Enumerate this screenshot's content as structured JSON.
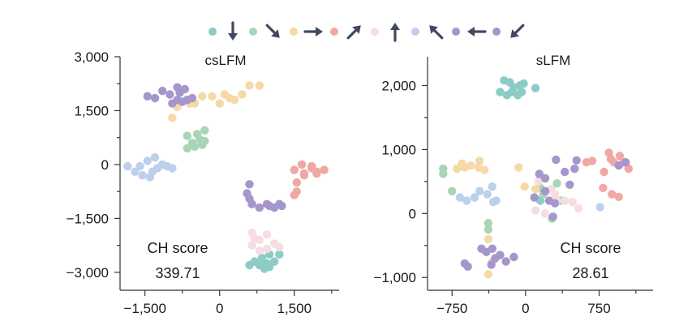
{
  "colors": {
    "teal": "#8ccbc6",
    "green": "#a8d5b4",
    "yellow": "#f5d9a8",
    "salmon": "#f0a8a4",
    "pink": "#f6dde2",
    "blue": "#bcd0ec",
    "purple": "#a596cb",
    "arrow": "#3f4a5c",
    "axis": "#333333"
  },
  "legend_sequence": [
    {
      "color": "teal",
      "arrow": "down"
    },
    {
      "color": "green",
      "arrow": "down-right"
    },
    {
      "color": "yellow",
      "arrow": "right"
    },
    {
      "color": "salmon",
      "arrow": "up-right"
    },
    {
      "color": "pink",
      "arrow": "up"
    },
    {
      "color": "blue",
      "arrow": "up-left"
    },
    {
      "color": "purple",
      "arrow": "left"
    },
    {
      "color": "purple",
      "arrow": "down-left"
    }
  ],
  "chart_data": [
    {
      "type": "scatter",
      "title": "csLFM",
      "xlabel": "",
      "ylabel": "",
      "xlim": [
        -2000,
        2400
      ],
      "ylim": [
        -3500,
        3000
      ],
      "xticks": [
        -1500,
        0,
        1500
      ],
      "xtick_labels": [
        "−1,500",
        "0",
        "1,500"
      ],
      "yticks": [
        -3000,
        -1500,
        0,
        1500,
        3000
      ],
      "ytick_labels": [
        "−3,000",
        "−1,500",
        "0",
        "1,500",
        "3,000"
      ],
      "score_label": "CH score",
      "score_value": "339.71",
      "series": [
        {
          "color": "teal",
          "points": [
            [
              600,
              -2800
            ],
            [
              700,
              -2700
            ],
            [
              800,
              -2800
            ],
            [
              900,
              -2900
            ],
            [
              1000,
              -2850
            ],
            [
              1100,
              -2700
            ],
            [
              1200,
              -2500
            ],
            [
              1000,
              -2500
            ],
            [
              850,
              -2600
            ],
            [
              950,
              -2750
            ]
          ]
        },
        {
          "color": "green",
          "points": [
            [
              -650,
              450
            ],
            [
              -550,
              600
            ],
            [
              -400,
              700
            ],
            [
              -300,
              650
            ],
            [
              -450,
              850
            ],
            [
              -300,
              950
            ],
            [
              -650,
              800
            ],
            [
              -500,
              500
            ],
            [
              -350,
              550
            ]
          ]
        },
        {
          "color": "yellow",
          "points": [
            [
              -950,
              1300
            ],
            [
              -850,
              1600
            ],
            [
              -600,
              1700
            ],
            [
              -500,
              1700
            ],
            [
              -350,
              1900
            ],
            [
              -150,
              1900
            ],
            [
              0,
              1700
            ],
            [
              100,
              1950
            ],
            [
              200,
              1850
            ],
            [
              300,
              1800
            ],
            [
              450,
              1950
            ],
            [
              600,
              2200
            ],
            [
              800,
              2200
            ]
          ]
        },
        {
          "color": "salmon",
          "points": [
            [
              1500,
              -150
            ],
            [
              1650,
              0
            ],
            [
              1700,
              -250
            ],
            [
              1850,
              -100
            ],
            [
              1950,
              -200
            ],
            [
              2100,
              -150
            ],
            [
              1850,
              -50
            ],
            [
              1950,
              -250
            ],
            [
              1550,
              -500
            ],
            [
              1550,
              -750
            ],
            [
              1500,
              -850
            ],
            [
              1700,
              -300
            ]
          ]
        },
        {
          "color": "pink",
          "points": [
            [
              650,
              -1900
            ],
            [
              800,
              -2100
            ],
            [
              950,
              -1950
            ],
            [
              1100,
              -2200
            ],
            [
              800,
              -2400
            ],
            [
              650,
              -2250
            ],
            [
              950,
              -2350
            ],
            [
              1200,
              -2300
            ],
            [
              700,
              -2050
            ]
          ]
        },
        {
          "color": "blue",
          "points": [
            [
              -1850,
              -50
            ],
            [
              -1700,
              -200
            ],
            [
              -1600,
              -50
            ],
            [
              -1550,
              -300
            ],
            [
              -1400,
              -350
            ],
            [
              -1450,
              100
            ],
            [
              -1300,
              200
            ],
            [
              -1250,
              -100
            ],
            [
              -1150,
              0
            ],
            [
              -1050,
              -50
            ],
            [
              -950,
              -100
            ],
            [
              -1350,
              -200
            ]
          ]
        },
        {
          "color": "purple",
          "points": [
            [
              -1450,
              1900
            ],
            [
              -1300,
              1850
            ],
            [
              -1150,
              2050
            ],
            [
              -1000,
              1950
            ],
            [
              -950,
              1700
            ],
            [
              -850,
              1800
            ],
            [
              -800,
              2000
            ],
            [
              -750,
              1750
            ],
            [
              -700,
              2100
            ],
            [
              -650,
              1800
            ],
            [
              -550,
              1850
            ],
            [
              -850,
              2150
            ],
            [
              600,
              -550
            ],
            [
              550,
              -800
            ],
            [
              600,
              -950
            ],
            [
              650,
              -1100
            ],
            [
              800,
              -1200
            ],
            [
              950,
              -1100
            ],
            [
              1100,
              -1200
            ],
            [
              1200,
              -1100
            ],
            [
              1250,
              -1150
            ],
            [
              1000,
              -1150
            ]
          ]
        }
      ]
    },
    {
      "type": "scatter",
      "title": "sLFM",
      "xlabel": "",
      "ylabel": "",
      "xlim": [
        -1000,
        1300
      ],
      "ylim": [
        -1200,
        2450
      ],
      "xticks": [
        -750,
        0,
        750
      ],
      "xtick_labels": [
        "−750",
        "0",
        "750"
      ],
      "yticks": [
        -1000,
        0,
        1000,
        2000
      ],
      "ytick_labels": [
        "−1,000",
        "0",
        "1,000",
        "2,000"
      ],
      "score_label": "CH score",
      "score_value": "28.61",
      "series": [
        {
          "color": "teal",
          "points": [
            [
              -260,
              1900
            ],
            [
              -190,
              1850
            ],
            [
              -140,
              1900
            ],
            [
              -80,
              1850
            ],
            [
              -40,
              1900
            ],
            [
              -60,
              2000
            ],
            [
              -160,
              2050
            ],
            [
              -220,
              2080
            ],
            [
              100,
              1960
            ],
            [
              -120,
              1970
            ],
            [
              -20,
              2030
            ],
            [
              150,
              200
            ]
          ]
        },
        {
          "color": "green",
          "points": [
            [
              -840,
              620
            ],
            [
              -840,
              700
            ],
            [
              -750,
              350
            ],
            [
              -380,
              -150
            ],
            [
              -380,
              -250
            ],
            [
              150,
              400
            ],
            [
              150,
              580
            ],
            [
              320,
              470
            ],
            [
              360,
              200
            ],
            [
              270,
              -80
            ],
            [
              180,
              300
            ]
          ]
        },
        {
          "color": "yellow",
          "points": [
            [
              -700,
              700
            ],
            [
              -650,
              780
            ],
            [
              -620,
              720
            ],
            [
              -560,
              750
            ],
            [
              -480,
              720
            ],
            [
              -420,
              680
            ],
            [
              -470,
              820
            ],
            [
              -380,
              -400
            ],
            [
              -340,
              -750
            ],
            [
              -380,
              -950
            ],
            [
              -10,
              420
            ],
            [
              -70,
              720
            ],
            [
              100,
              380
            ]
          ]
        },
        {
          "color": "salmon",
          "points": [
            [
              800,
              650
            ],
            [
              870,
              850
            ],
            [
              900,
              800
            ],
            [
              1000,
              800
            ],
            [
              1050,
              700
            ],
            [
              950,
              750
            ],
            [
              620,
              800
            ],
            [
              680,
              820
            ],
            [
              850,
              950
            ],
            [
              960,
              900
            ],
            [
              790,
              400
            ],
            [
              880,
              300
            ],
            [
              950,
              260
            ]
          ]
        },
        {
          "color": "pink",
          "points": [
            [
              100,
              50
            ],
            [
              200,
              0
            ],
            [
              220,
              350
            ],
            [
              300,
              300
            ],
            [
              400,
              200
            ],
            [
              480,
              180
            ],
            [
              540,
              80
            ],
            [
              130,
              500
            ],
            [
              320,
              200
            ],
            [
              260,
              380
            ]
          ]
        },
        {
          "color": "blue",
          "points": [
            [
              -670,
              250
            ],
            [
              -600,
              200
            ],
            [
              -520,
              250
            ],
            [
              -470,
              350
            ],
            [
              -390,
              300
            ],
            [
              -340,
              420
            ],
            [
              -300,
              200
            ],
            [
              -330,
              180
            ],
            [
              760,
              100
            ]
          ]
        },
        {
          "color": "purple",
          "points": [
            [
              -620,
              -780
            ],
            [
              -590,
              -830
            ],
            [
              -450,
              -550
            ],
            [
              -400,
              -600
            ],
            [
              -310,
              -700
            ],
            [
              -260,
              -650
            ],
            [
              -200,
              -750
            ],
            [
              -350,
              -800
            ],
            [
              -340,
              -550
            ],
            [
              -120,
              -680
            ],
            [
              90,
              250
            ],
            [
              140,
              620
            ],
            [
              200,
              550
            ],
            [
              200,
              350
            ],
            [
              240,
              200
            ],
            [
              280,
              -50
            ],
            [
              300,
              160
            ],
            [
              310,
              840
            ],
            [
              400,
              650
            ],
            [
              450,
              450
            ],
            [
              500,
              700
            ],
            [
              520,
              830
            ],
            [
              950,
              750
            ],
            [
              1020,
              800
            ]
          ]
        }
      ]
    }
  ]
}
